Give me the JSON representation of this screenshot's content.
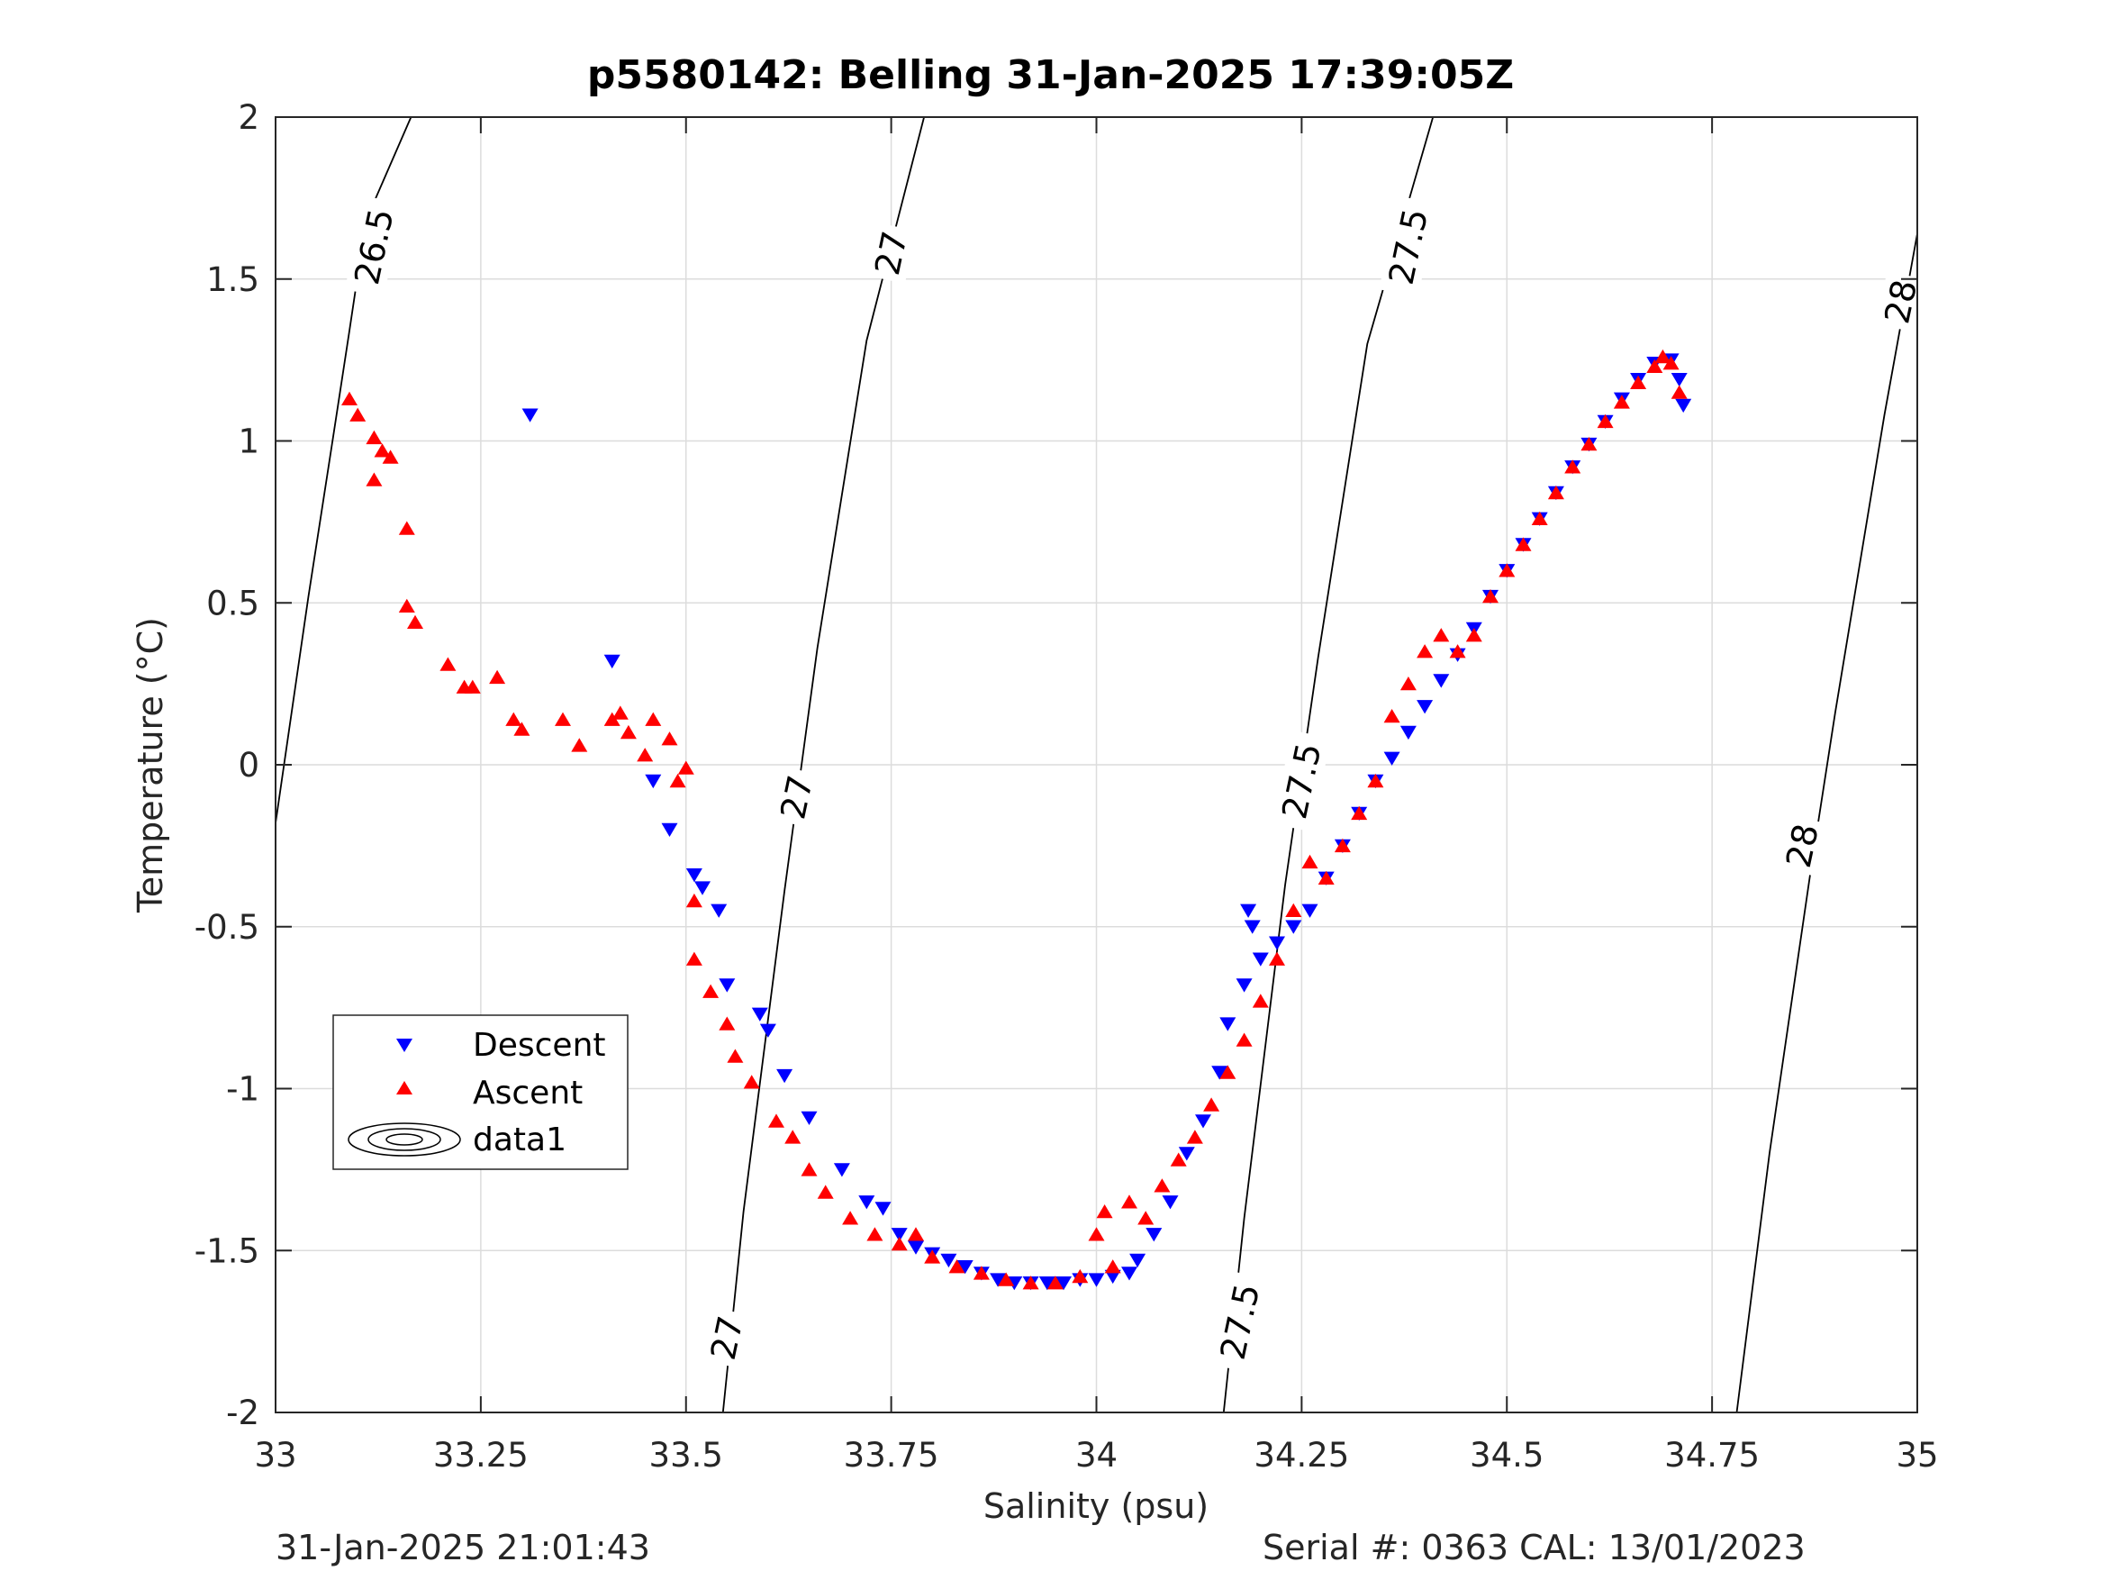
{
  "chart_data": {
    "type": "scatter",
    "title": "p5580142: Belling 31-Jan-2025 17:39:05Z",
    "xlabel": "Salinity (psu)",
    "ylabel": "Temperature (°C)",
    "xlim": [
      33,
      35
    ],
    "ylim": [
      -2,
      2
    ],
    "x_ticks": [
      33,
      33.25,
      33.5,
      33.75,
      34,
      34.25,
      34.5,
      34.75,
      35
    ],
    "x_tick_labels": [
      "33",
      "33.25",
      "33.5",
      "33.75",
      "34",
      "34.25",
      "34.5",
      "34.75",
      "35"
    ],
    "y_ticks": [
      -2,
      -1.5,
      -1,
      -0.5,
      0,
      0.5,
      1,
      1.5,
      2
    ],
    "y_tick_labels": [
      "-2",
      "-1.5",
      "-1",
      "-0.5",
      "0",
      "0.5",
      "1",
      "1.5",
      "2"
    ],
    "grid": true,
    "legend_position": "lower-left",
    "legend": [
      "Descent",
      "Ascent",
      "data1"
    ],
    "colors": {
      "descent": "#0000ff",
      "ascent": "#ff0000",
      "contour": "#000000",
      "grid": "#dcdcdc"
    },
    "series": [
      {
        "name": "Descent",
        "marker": "down-triangle",
        "points": [
          [
            33.31,
            1.08
          ],
          [
            33.41,
            0.32
          ],
          [
            33.46,
            -0.05
          ],
          [
            33.48,
            -0.2
          ],
          [
            33.51,
            -0.34
          ],
          [
            33.52,
            -0.38
          ],
          [
            33.54,
            -0.45
          ],
          [
            33.55,
            -0.68
          ],
          [
            33.59,
            -0.77
          ],
          [
            33.6,
            -0.82
          ],
          [
            33.62,
            -0.96
          ],
          [
            33.65,
            -1.09
          ],
          [
            33.69,
            -1.25
          ],
          [
            33.72,
            -1.35
          ],
          [
            33.74,
            -1.37
          ],
          [
            33.76,
            -1.45
          ],
          [
            33.78,
            -1.49
          ],
          [
            33.8,
            -1.51
          ],
          [
            33.82,
            -1.53
          ],
          [
            33.84,
            -1.55
          ],
          [
            33.86,
            -1.57
          ],
          [
            33.88,
            -1.59
          ],
          [
            33.9,
            -1.6
          ],
          [
            33.92,
            -1.6
          ],
          [
            33.94,
            -1.6
          ],
          [
            33.96,
            -1.6
          ],
          [
            33.98,
            -1.59
          ],
          [
            34.0,
            -1.59
          ],
          [
            34.02,
            -1.58
          ],
          [
            34.04,
            -1.57
          ],
          [
            34.05,
            -1.53
          ],
          [
            34.07,
            -1.45
          ],
          [
            34.09,
            -1.35
          ],
          [
            34.11,
            -1.2
          ],
          [
            34.13,
            -1.1
          ],
          [
            34.15,
            -0.95
          ],
          [
            34.16,
            -0.8
          ],
          [
            34.18,
            -0.68
          ],
          [
            34.185,
            -0.45
          ],
          [
            34.19,
            -0.5
          ],
          [
            34.2,
            -0.6
          ],
          [
            34.22,
            -0.55
          ],
          [
            34.24,
            -0.5
          ],
          [
            34.26,
            -0.45
          ],
          [
            34.28,
            -0.35
          ],
          [
            34.3,
            -0.25
          ],
          [
            34.32,
            -0.15
          ],
          [
            34.34,
            -0.05
          ],
          [
            34.36,
            0.02
          ],
          [
            34.38,
            0.1
          ],
          [
            34.4,
            0.18
          ],
          [
            34.42,
            0.26
          ],
          [
            34.44,
            0.34
          ],
          [
            34.46,
            0.42
          ],
          [
            34.48,
            0.52
          ],
          [
            34.5,
            0.6
          ],
          [
            34.52,
            0.68
          ],
          [
            34.54,
            0.76
          ],
          [
            34.56,
            0.84
          ],
          [
            34.58,
            0.92
          ],
          [
            34.6,
            0.99
          ],
          [
            34.62,
            1.06
          ],
          [
            34.64,
            1.13
          ],
          [
            34.66,
            1.19
          ],
          [
            34.68,
            1.24
          ],
          [
            34.7,
            1.25
          ],
          [
            34.71,
            1.19
          ],
          [
            34.715,
            1.11
          ]
        ]
      },
      {
        "name": "Ascent",
        "marker": "up-triangle",
        "points": [
          [
            33.09,
            1.13
          ],
          [
            33.1,
            1.08
          ],
          [
            33.12,
            1.01
          ],
          [
            33.13,
            0.97
          ],
          [
            33.14,
            0.95
          ],
          [
            33.12,
            0.88
          ],
          [
            33.16,
            0.73
          ],
          [
            33.16,
            0.49
          ],
          [
            33.17,
            0.44
          ],
          [
            33.21,
            0.31
          ],
          [
            33.23,
            0.24
          ],
          [
            33.24,
            0.24
          ],
          [
            33.27,
            0.27
          ],
          [
            33.29,
            0.14
          ],
          [
            33.3,
            0.11
          ],
          [
            33.35,
            0.14
          ],
          [
            33.37,
            0.06
          ],
          [
            33.41,
            0.14
          ],
          [
            33.42,
            0.16
          ],
          [
            33.43,
            0.1
          ],
          [
            33.45,
            0.03
          ],
          [
            33.46,
            0.14
          ],
          [
            33.48,
            0.08
          ],
          [
            33.49,
            -0.05
          ],
          [
            33.5,
            -0.01
          ],
          [
            33.51,
            -0.42
          ],
          [
            33.51,
            -0.6
          ],
          [
            33.53,
            -0.7
          ],
          [
            33.55,
            -0.8
          ],
          [
            33.56,
            -0.9
          ],
          [
            33.58,
            -0.98
          ],
          [
            33.61,
            -1.1
          ],
          [
            33.63,
            -1.15
          ],
          [
            33.65,
            -1.25
          ],
          [
            33.67,
            -1.32
          ],
          [
            33.7,
            -1.4
          ],
          [
            33.73,
            -1.45
          ],
          [
            33.76,
            -1.48
          ],
          [
            33.78,
            -1.45
          ],
          [
            33.8,
            -1.52
          ],
          [
            33.83,
            -1.55
          ],
          [
            33.86,
            -1.57
          ],
          [
            33.89,
            -1.59
          ],
          [
            33.92,
            -1.6
          ],
          [
            33.95,
            -1.6
          ],
          [
            33.98,
            -1.58
          ],
          [
            34.0,
            -1.45
          ],
          [
            34.01,
            -1.38
          ],
          [
            34.02,
            -1.55
          ],
          [
            34.04,
            -1.35
          ],
          [
            34.06,
            -1.4
          ],
          [
            34.08,
            -1.3
          ],
          [
            34.1,
            -1.22
          ],
          [
            34.12,
            -1.15
          ],
          [
            34.14,
            -1.05
          ],
          [
            34.16,
            -0.95
          ],
          [
            34.18,
            -0.85
          ],
          [
            34.2,
            -0.73
          ],
          [
            34.22,
            -0.6
          ],
          [
            34.24,
            -0.45
          ],
          [
            34.26,
            -0.3
          ],
          [
            34.28,
            -0.35
          ],
          [
            34.3,
            -0.25
          ],
          [
            34.32,
            -0.15
          ],
          [
            34.34,
            -0.05
          ],
          [
            34.36,
            0.15
          ],
          [
            34.38,
            0.25
          ],
          [
            34.4,
            0.35
          ],
          [
            34.42,
            0.4
          ],
          [
            34.44,
            0.35
          ],
          [
            34.46,
            0.4
          ],
          [
            34.48,
            0.52
          ],
          [
            34.5,
            0.6
          ],
          [
            34.52,
            0.68
          ],
          [
            34.54,
            0.76
          ],
          [
            34.56,
            0.84
          ],
          [
            34.58,
            0.92
          ],
          [
            34.6,
            0.99
          ],
          [
            34.62,
            1.06
          ],
          [
            34.64,
            1.12
          ],
          [
            34.66,
            1.18
          ],
          [
            34.68,
            1.23
          ],
          [
            34.69,
            1.26
          ],
          [
            34.7,
            1.24
          ],
          [
            34.71,
            1.15
          ]
        ]
      }
    ],
    "contours": [
      {
        "level": "26.5",
        "points": [
          [
            33.0,
            -0.18
          ],
          [
            33.04,
            0.52
          ],
          [
            33.07,
            1.01
          ],
          [
            33.09,
            1.34
          ],
          [
            33.11,
            1.68
          ],
          [
            33.165,
            2.0
          ]
        ]
      },
      {
        "level": "27",
        "points": [
          [
            33.545,
            -2.0
          ],
          [
            33.57,
            -1.38
          ],
          [
            33.62,
            -0.39
          ],
          [
            33.66,
            0.36
          ],
          [
            33.72,
            1.31
          ],
          [
            33.79,
            2.0
          ]
        ]
      },
      {
        "level": "27.5",
        "points": [
          [
            34.155,
            -2.0
          ],
          [
            34.18,
            -1.4
          ],
          [
            34.23,
            -0.37
          ],
          [
            34.27,
            0.33
          ],
          [
            34.33,
            1.3
          ],
          [
            34.41,
            2.0
          ]
        ]
      },
      {
        "level": "28",
        "points": [
          [
            34.78,
            -2.0
          ],
          [
            34.82,
            -1.2
          ],
          [
            34.87,
            -0.33
          ],
          [
            34.9,
            0.16
          ],
          [
            34.96,
            1.08
          ],
          [
            35.0,
            1.64
          ]
        ]
      }
    ],
    "contour_labels": [
      {
        "text": "26.5",
        "x": 33.12,
        "y": 1.6
      },
      {
        "text": "27",
        "x": 33.75,
        "y": 1.58
      },
      {
        "text": "27",
        "x": 33.635,
        "y": -0.1
      },
      {
        "text": "27",
        "x": 33.55,
        "y": -1.77
      },
      {
        "text": "27.5",
        "x": 34.38,
        "y": 1.6
      },
      {
        "text": "27.5",
        "x": 34.25,
        "y": -0.05
      },
      {
        "text": "27.5",
        "x": 34.175,
        "y": -1.72
      },
      {
        "text": "28",
        "x": 34.98,
        "y": 1.43
      },
      {
        "text": "28",
        "x": 34.86,
        "y": -0.25
      }
    ]
  },
  "footer": {
    "timestamp": "31-Jan-2025 21:01:43",
    "serial": "Serial #: 0363  CAL: 13/01/2023"
  }
}
